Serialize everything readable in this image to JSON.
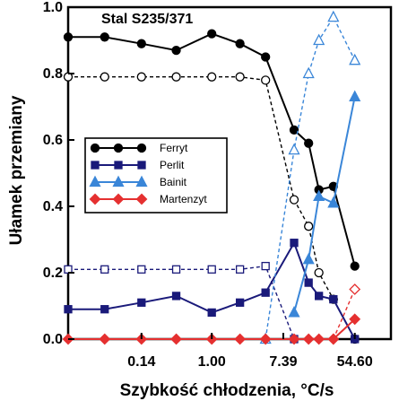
{
  "chart_data": {
    "type": "line",
    "title": "Stal S235/371",
    "xlabel": "Szybkość chłodzenia, °C/s",
    "ylabel": "Ułamek przemiany",
    "x_scale": "log",
    "x_tick_labels": [
      "0.14",
      "1.00",
      "7.39",
      "54.60"
    ],
    "x_ticks": [
      0.14,
      1.0,
      7.39,
      54.6
    ],
    "xlim": [
      0.018,
      150
    ],
    "y_tick_labels": [
      "0.0",
      "0.2",
      "0.4",
      "0.6",
      "0.8",
      "1.0"
    ],
    "ylim": [
      0,
      1
    ],
    "legend_position": "center-left",
    "x": [
      0.018,
      0.05,
      0.14,
      0.37,
      1.0,
      2.2,
      4.5,
      10,
      15,
      20,
      30,
      54.6,
      90
    ],
    "series": [
      {
        "name": "Ferryt",
        "color": "#000000",
        "marker": "circle",
        "solid_values": [
          0.91,
          0.91,
          0.89,
          0.87,
          0.92,
          0.89,
          0.85,
          0.63,
          0.59,
          0.45,
          0.46,
          0.22,
          null
        ],
        "dashed_values": [
          0.79,
          0.79,
          0.79,
          0.79,
          0.79,
          0.79,
          0.78,
          0.42,
          0.34,
          0.2,
          0.12,
          0.0,
          null
        ]
      },
      {
        "name": "Perlit",
        "color": "#1a1a7a",
        "marker": "square",
        "solid_values": [
          0.09,
          0.09,
          0.11,
          0.13,
          0.08,
          0.11,
          0.14,
          0.29,
          0.17,
          0.13,
          0.12,
          0.0,
          null
        ],
        "dashed_values": [
          0.21,
          0.21,
          0.21,
          0.21,
          0.21,
          0.21,
          0.22,
          0.0,
          null,
          null,
          null,
          null,
          null
        ]
      },
      {
        "name": "Bainit",
        "color": "#3a86d8",
        "marker": "triangle",
        "solid_values": [
          null,
          null,
          null,
          null,
          null,
          null,
          null,
          0.08,
          0.24,
          0.43,
          0.41,
          0.73,
          null
        ],
        "dashed_values": [
          null,
          null,
          null,
          null,
          null,
          null,
          0.0,
          0.57,
          0.8,
          0.9,
          0.97,
          0.84,
          null
        ]
      },
      {
        "name": "Martenzyt",
        "color": "#e53030",
        "marker": "diamond",
        "solid_values": [
          0.0,
          0.0,
          0.0,
          0.0,
          0.0,
          0.0,
          0.0,
          0.0,
          0.0,
          0.0,
          0.0,
          0.06,
          null
        ],
        "dashed_values": [
          null,
          null,
          null,
          null,
          null,
          null,
          null,
          null,
          null,
          null,
          0.0,
          0.15,
          null
        ]
      }
    ],
    "grid": false
  }
}
